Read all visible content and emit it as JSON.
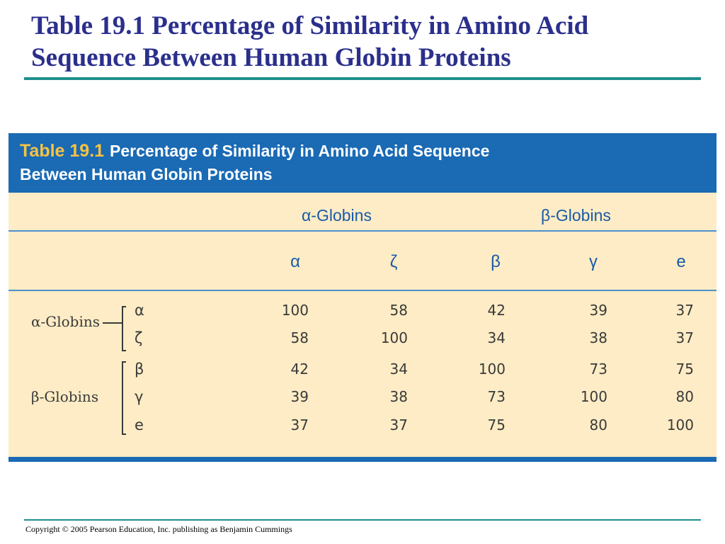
{
  "slide": {
    "title_line1": "Table 19.1 Percentage of Similarity in Amino Acid",
    "title_line2": "Sequence Between Human Globin Proteins",
    "copyright": "Copyright © 2005 Pearson Education, Inc. publishing as Benjamin Cummings"
  },
  "table": {
    "number": "Table 19.1",
    "caption_line1": "Percentage of Similarity in Amino Acid Sequence",
    "caption_line2": "Between Human Globin Proteins",
    "group_headers": [
      "α-Globins",
      "β-Globins"
    ],
    "columns": [
      "α",
      "ζ",
      "β",
      "γ",
      "e"
    ],
    "row_groups": [
      {
        "label": "α-Globins",
        "rows": [
          {
            "symbol": "α",
            "values": [
              "100",
              "58",
              "42",
              "39",
              "37"
            ]
          },
          {
            "symbol": "ζ",
            "values": [
              "58",
              "100",
              "34",
              "38",
              "37"
            ]
          }
        ]
      },
      {
        "label": "β-Globins",
        "rows": [
          {
            "symbol": "β",
            "values": [
              "42",
              "34",
              "100",
              "73",
              "75"
            ]
          },
          {
            "symbol": "γ",
            "values": [
              "39",
              "38",
              "73",
              "100",
              "80"
            ]
          },
          {
            "symbol": "e",
            "values": [
              "37",
              "37",
              "75",
              "80",
              "100"
            ]
          }
        ]
      }
    ]
  },
  "colors": {
    "title": "#2b2f8c",
    "rule": "#1e8f8d",
    "table_header_bg": "#1a6ab4",
    "table_body_bg": "#fdecc5",
    "column_header_text": "#1a5aa8"
  }
}
